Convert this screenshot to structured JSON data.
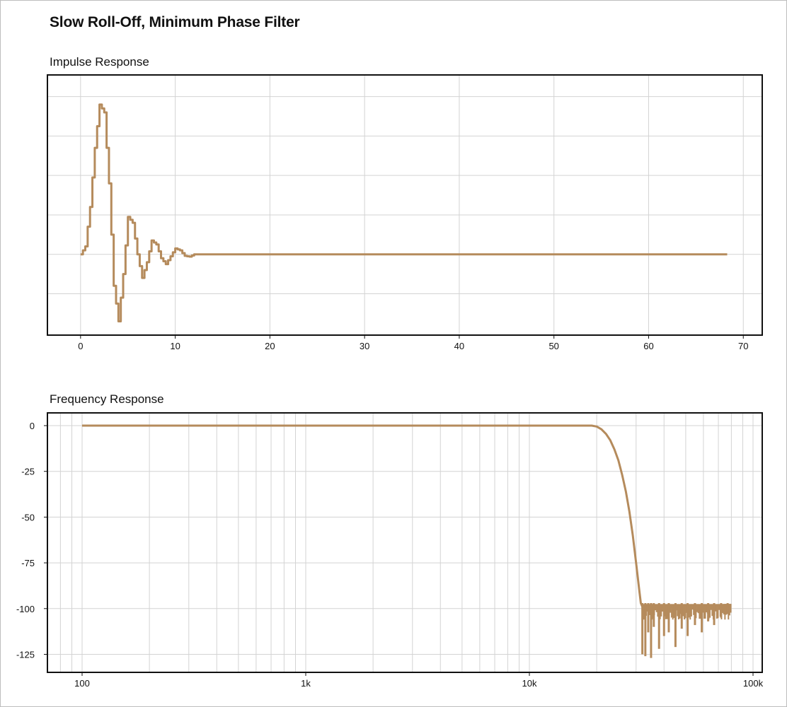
{
  "title": "Slow Roll-Off, Minimum Phase Filter",
  "colors": {
    "curve": "#b58b5c",
    "grid": "#d3d3d3",
    "axis": "#111111"
  },
  "chart_data": [
    {
      "type": "line",
      "label": "Impulse Response",
      "x_ticks": [
        0,
        10,
        20,
        30,
        40,
        50,
        60,
        70
      ],
      "xlim": [
        -3.5,
        72
      ],
      "ylim": [
        -0.205,
        0.455
      ],
      "y_grid": [
        0.4,
        0.3,
        0.2,
        0.1,
        0.0,
        -0.1
      ],
      "y_tick_labels_shown": false,
      "grid": true,
      "series": [
        {
          "x": [
            0,
            0.5,
            1.0,
            1.5,
            2.0,
            2.5,
            3.0,
            3.5,
            4.0,
            4.5,
            5.0,
            5.5,
            6.0,
            6.5,
            7.0,
            7.5,
            8.0,
            8.5,
            9.0,
            9.5,
            10.0,
            10.5,
            11.0,
            11.5,
            12.0,
            68.3
          ],
          "y": [
            0.0,
            0.02,
            0.12,
            0.27,
            0.38,
            0.36,
            0.18,
            -0.08,
            -0.17,
            -0.05,
            0.095,
            0.08,
            0.0,
            -0.06,
            -0.02,
            0.035,
            0.025,
            -0.01,
            -0.025,
            -0.005,
            0.015,
            0.01,
            -0.004,
            -0.006,
            0.0,
            0.0
          ]
        }
      ]
    },
    {
      "type": "line",
      "label": "Frequency Response",
      "x_scale": "log",
      "x_ticks": [
        "100",
        "1k",
        "10k",
        "100k"
      ],
      "xlim": [
        100,
        100000
      ],
      "y_ticks": [
        "0",
        "-25",
        "-50",
        "-75",
        "-100",
        "-125"
      ],
      "ylim": [
        -135,
        5
      ],
      "grid": true,
      "series": [
        {
          "x": [
            100,
            1000,
            10000,
            19000,
            20000,
            21000,
            22000,
            23000,
            24000,
            25000,
            26000,
            27000,
            28000,
            29000,
            30000,
            31000,
            31500,
            32000,
            34000,
            37000,
            40000,
            44000,
            48000,
            53000,
            58000,
            64000,
            70000,
            75000,
            80000
          ],
          "y": [
            0,
            0,
            0,
            0,
            -0.5,
            -2,
            -4.5,
            -8,
            -13,
            -19,
            -27,
            -36,
            -47,
            -60,
            -75,
            -90,
            -97,
            -99,
            -100,
            -99.5,
            -99,
            -99,
            -98.8,
            -98.6,
            -98.4,
            -98.3,
            -98.2,
            -98,
            -98
          ],
          "ripple_floor_x": [
            32000,
            33000,
            34000,
            35000,
            36000,
            38000,
            40000,
            42000,
            45000,
            48000,
            51000,
            55000,
            59000,
            63000,
            67000,
            72000,
            77000
          ],
          "ripple_floor_y": [
            -125,
            -126,
            -113,
            -127,
            -110,
            -122,
            -115,
            -113,
            -121,
            -111,
            -115,
            -109,
            -113,
            -107,
            -109,
            -105,
            -103
          ]
        }
      ]
    }
  ]
}
